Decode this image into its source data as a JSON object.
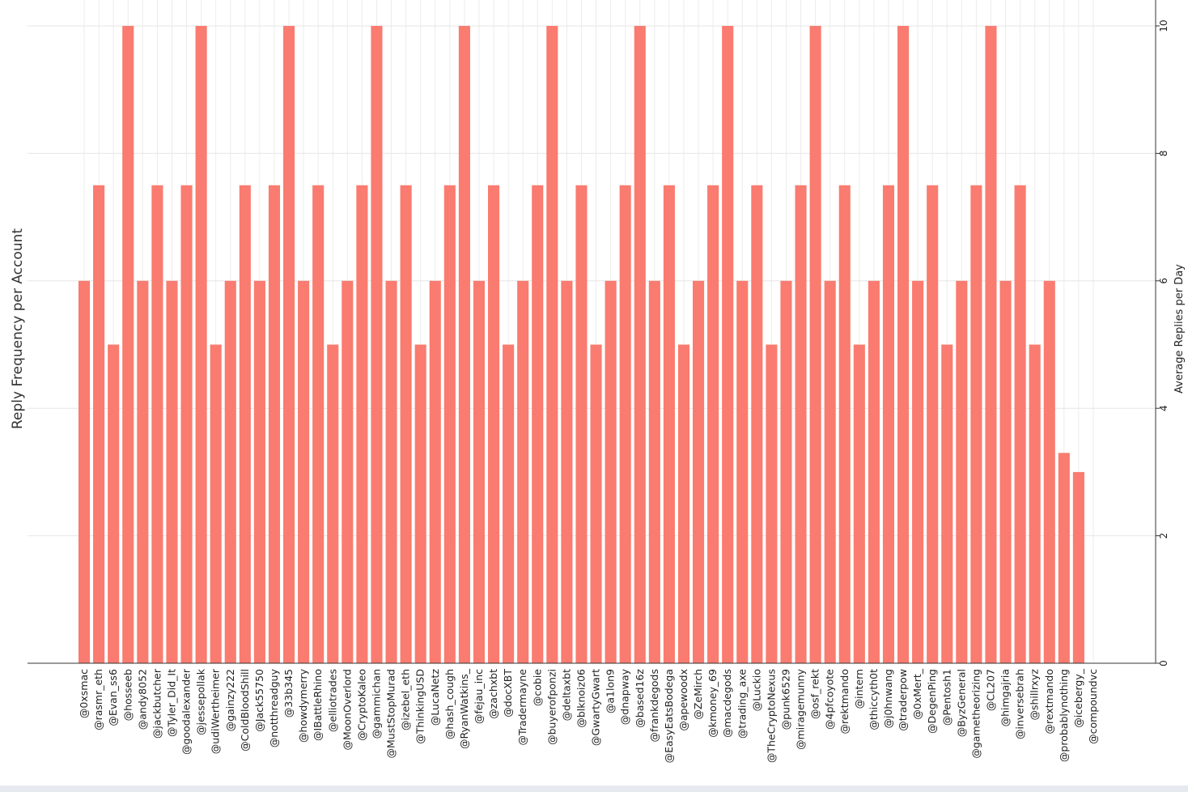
{
  "chart_data": {
    "type": "bar",
    "title": "",
    "ylabel_left": "Reply Frequency per Account",
    "ylabel_right": "Average Replies per Day",
    "ylim": [
      0,
      10
    ],
    "yticks": [
      "0",
      "2",
      "4",
      "6",
      "8",
      "10"
    ],
    "y_axis_position": "right",
    "grid": true,
    "bar_color": "#fa7b6f",
    "categories": [
      "@0xsmac",
      "@rasmr_eth",
      "@Evan_ss6",
      "@hosseeb",
      "@andy8052",
      "@jackbutcher",
      "@Tyler_Did_It",
      "@goodalexander",
      "@jessepollak",
      "@udiWertheimer",
      "@gainzy222",
      "@ColdBloodShill",
      "@Jack55750",
      "@notthreadguy",
      "@33b345",
      "@howdymerry",
      "@IBattleRhino",
      "@elliotrades",
      "@MoonOverlord",
      "@CryptoKaleo",
      "@gammichan",
      "@MustStopMurad",
      "@izebel_eth",
      "@ThinkingUSD",
      "@LucaNetz",
      "@hash_cough",
      "@RyanWatkins_",
      "@fejau_inc",
      "@zachxbt",
      "@docXBT",
      "@Tradermayne",
      "@cobie",
      "@buyerofponzi",
      "@deltaxbt",
      "@blknoiz06",
      "@GwartyGwart",
      "@a1lon9",
      "@dnapway",
      "@based16z",
      "@frankdegods",
      "@EasyEatsBodega",
      "@apewoodx",
      "@ZeMirch",
      "@kmoney_69",
      "@macdegods",
      "@trading_axe",
      "@Luckio",
      "@TheCryptoNexus",
      "@punk6529",
      "@miragemunny",
      "@osf_rekt",
      "@4pfcoyote",
      "@rektmando",
      "@intern",
      "@thiccyth0t",
      "@j0hnwang",
      "@traderpow",
      "@0xMert_",
      "@DegenPing",
      "@Pentosh1",
      "@ByzGeneral",
      "@gametheorizing",
      "@CL207",
      "@himgajria",
      "@inversebrah",
      "@shillrxyz",
      "@rextmando",
      "@probablynothing",
      "@icebergy_",
      "@compoundvc"
    ],
    "values": [
      6,
      7.5,
      5,
      10,
      6,
      7.5,
      6,
      7.5,
      10,
      5,
      6,
      7.5,
      6,
      7.5,
      10,
      6,
      7.5,
      5,
      6,
      7.5,
      10,
      6,
      7.5,
      5,
      6,
      7.5,
      10,
      6,
      7.5,
      5,
      6,
      7.5,
      10,
      6,
      7.5,
      5,
      6,
      7.5,
      10,
      6,
      7.5,
      5,
      6,
      7.5,
      10,
      6,
      7.5,
      5,
      6,
      7.5,
      10,
      6,
      7.5,
      5,
      6,
      7.5,
      10,
      6,
      7.5,
      5,
      6,
      7.5,
      10,
      6,
      7.5,
      5,
      6,
      3.3,
      3,
      0
    ]
  }
}
